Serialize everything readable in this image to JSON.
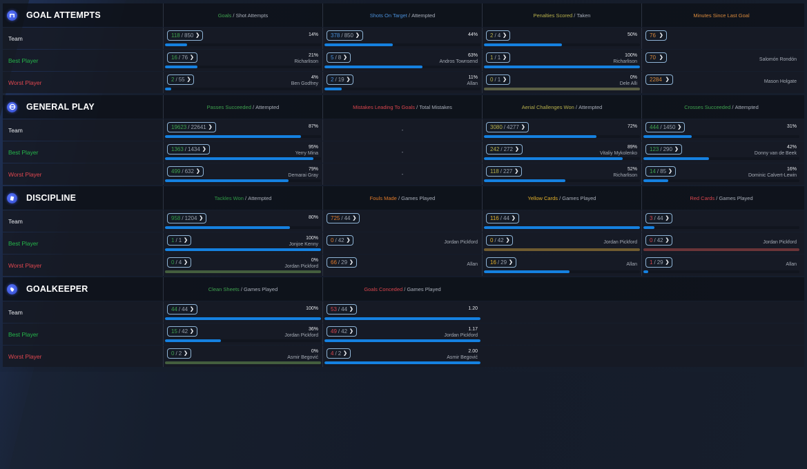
{
  "colors": {
    "goals": "#3fa24f",
    "shots": "#4a8fd8",
    "penalties": "#b7b04c",
    "minutes": "#d98a3d",
    "passes": "#3fa24f",
    "mistakes": "#d9454d",
    "aerial": "#b7b04c",
    "crosses": "#3fa24f",
    "tackles": "#2f9a45",
    "fouls": "#e07a2a",
    "yellow": "#e3b12a",
    "red": "#d9454d",
    "clean": "#3fa24f",
    "conceded": "#d9454d",
    "bar": "#1581e0",
    "zero_green": "#445e3e",
    "zero_olive": "#5b5f44",
    "zero_yellow": "#6f5b30",
    "zero_red": "#6a3438"
  },
  "row_labels": {
    "team": "Team",
    "best": "Best Player",
    "worst": "Worst Player"
  },
  "sections": [
    {
      "title": "GOAL ATTEMPTS",
      "icon": "goal-icon",
      "columns": [
        {
          "metric": "Goals",
          "divider": " / ",
          "base": "Shot Attempts",
          "color": "goals",
          "rows": [
            {
              "num": "118",
              "den": "850",
              "pct": "14%",
              "player": "",
              "fill": 14
            },
            {
              "num": "16",
              "den": "76",
              "pct": "21%",
              "player": "Richarlison",
              "fill": 21
            },
            {
              "num": "2",
              "den": "55",
              "pct": "4%",
              "player": "Ben Godfrey",
              "fill": 4
            }
          ]
        },
        {
          "metric": "Shots On Target",
          "divider": " / ",
          "base": "Attempted",
          "color": "shots",
          "rows": [
            {
              "num": "378",
              "den": "850",
              "pct": "44%",
              "player": "",
              "fill": 44
            },
            {
              "num": "5",
              "den": "8",
              "pct": "63%",
              "player": "Andros Townsend",
              "fill": 63
            },
            {
              "num": "2",
              "den": "19",
              "pct": "11%",
              "player": "Allan",
              "fill": 11
            }
          ]
        },
        {
          "metric": "Penalties Scored",
          "divider": " / ",
          "base": "Taken",
          "color": "penalties",
          "rows": [
            {
              "num": "2",
              "den": "4",
              "pct": "50%",
              "player": "",
              "fill": 50
            },
            {
              "num": "1",
              "den": "1",
              "pct": "100%",
              "player": "Richarlison",
              "fill": 100
            },
            {
              "num": "0",
              "den": "1",
              "pct": "0%",
              "player": "Dele Alli",
              "fill": 0,
              "zero": "zero_olive"
            }
          ]
        },
        {
          "metric": "Minutes Since Last Goal",
          "divider": "",
          "base": "",
          "color": "minutes",
          "single": true,
          "rows": [
            {
              "num": "76",
              "player": ""
            },
            {
              "num": "70",
              "player": "Salomón Rondón"
            },
            {
              "num": "2284",
              "player": "Mason Holgate"
            }
          ]
        }
      ]
    },
    {
      "title": "GENERAL PLAY",
      "icon": "general-play-icon",
      "columns": [
        {
          "metric": "Passes Succeeded",
          "divider": " / ",
          "base": "Attempted",
          "color": "passes",
          "rows": [
            {
              "num": "19623",
              "den": "22641",
              "pct": "87%",
              "player": "",
              "fill": 87
            },
            {
              "num": "1363",
              "den": "1434",
              "pct": "95%",
              "player": "Yerry Mina",
              "fill": 95
            },
            {
              "num": "499",
              "den": "632",
              "pct": "79%",
              "player": "Demarai Gray",
              "fill": 79
            }
          ]
        },
        {
          "metric": "Mistakes Leading To Goals",
          "divider": " / ",
          "base": "Total Mistakes",
          "color": "mistakes",
          "dash": true,
          "rows": [
            {
              "text": "-"
            },
            {
              "text": "-"
            },
            {
              "text": "-"
            }
          ]
        },
        {
          "metric": "Aerial Challenges Won",
          "divider": " / ",
          "base": "Attempted",
          "color": "aerial",
          "rows": [
            {
              "num": "3080",
              "den": "4277",
              "pct": "72%",
              "player": "",
              "fill": 72
            },
            {
              "num": "242",
              "den": "272",
              "pct": "89%",
              "player": "Vitaliy Mykolenko",
              "fill": 89
            },
            {
              "num": "118",
              "den": "227",
              "pct": "52%",
              "player": "Richarlison",
              "fill": 52
            }
          ]
        },
        {
          "metric": "Crosses Succeeded",
          "divider": " / ",
          "base": "Attempted",
          "color": "crosses",
          "rows": [
            {
              "num": "444",
              "den": "1450",
              "pct": "31%",
              "player": "",
              "fill": 31
            },
            {
              "num": "123",
              "den": "290",
              "pct": "42%",
              "player": "Donny van de Beek",
              "fill": 42
            },
            {
              "num": "14",
              "den": "85",
              "pct": "16%",
              "player": "Dominic Calvert-Lewin",
              "fill": 16
            }
          ]
        }
      ]
    },
    {
      "title": "DISCIPLINE",
      "icon": "discipline-icon",
      "columns": [
        {
          "metric": "Tackles Won",
          "divider": " / ",
          "base": "Attempted",
          "color": "tackles",
          "rows": [
            {
              "num": "958",
              "den": "1204",
              "pct": "80%",
              "player": "",
              "fill": 80
            },
            {
              "num": "1",
              "den": "1",
              "pct": "100%",
              "player": "Jonjoe Kenny",
              "fill": 100
            },
            {
              "num": "0",
              "den": "4",
              "pct": "0%",
              "player": "Jordan Pickford",
              "fill": 0,
              "zero": "zero_green"
            }
          ]
        },
        {
          "metric": "Fouls Made",
          "divider": " / ",
          "base": "Games Played",
          "color": "fouls",
          "nobar": true,
          "rows": [
            {
              "num": "725",
              "den": "44",
              "pct": "",
              "player": ""
            },
            {
              "num": "0",
              "den": "42",
              "pct": "",
              "player": "Jordan Pickford"
            },
            {
              "num": "66",
              "den": "29",
              "pct": "",
              "player": "Allan"
            }
          ]
        },
        {
          "metric": "Yellow Cards",
          "divider": " / ",
          "base": "Games Played",
          "color": "yellow",
          "rows": [
            {
              "num": "116",
              "den": "44",
              "pct": "",
              "player": "",
              "fill": 100
            },
            {
              "num": "0",
              "den": "42",
              "pct": "",
              "player": "Jordan Pickford",
              "fill": 0,
              "zero": "zero_yellow"
            },
            {
              "num": "16",
              "den": "29",
              "pct": "",
              "player": "Allan",
              "fill": 55
            }
          ]
        },
        {
          "metric": "Red Cards",
          "divider": " / ",
          "base": "Games Played",
          "color": "red",
          "rows": [
            {
              "num": "3",
              "den": "44",
              "pct": "",
              "player": "",
              "fill": 7
            },
            {
              "num": "0",
              "den": "42",
              "pct": "",
              "player": "Jordan Pickford",
              "fill": 0,
              "zero": "zero_red"
            },
            {
              "num": "1",
              "den": "29",
              "pct": "",
              "player": "Allan",
              "fill": 3
            }
          ]
        }
      ]
    },
    {
      "title": "GOALKEEPER",
      "icon": "goalkeeper-glove-icon",
      "columns": [
        {
          "metric": "Clean Sheets",
          "divider": " / ",
          "base": "Games Played",
          "color": "clean",
          "rows": [
            {
              "num": "44",
              "den": "44",
              "pct": "100%",
              "player": "",
              "fill": 100
            },
            {
              "num": "15",
              "den": "42",
              "pct": "36%",
              "player": "Jordan Pickford",
              "fill": 36
            },
            {
              "num": "0",
              "den": "2",
              "pct": "0%",
              "player": "Asmir Begović",
              "fill": 0,
              "zero": "zero_green"
            }
          ]
        },
        {
          "metric": "Goals Conceded",
          "divider": " / ",
          "base": "Games Played",
          "color": "conceded",
          "rows": [
            {
              "num": "53",
              "den": "44",
              "pct": "1.20",
              "player": "",
              "fill": 100
            },
            {
              "num": "49",
              "den": "42",
              "pct": "1.17",
              "player": "Jordan Pickford",
              "fill": 100
            },
            {
              "num": "4",
              "den": "2",
              "pct": "2.00",
              "player": "Asmir Begović",
              "fill": 100
            }
          ]
        },
        {
          "empty": true
        },
        {
          "empty": true
        }
      ]
    }
  ]
}
